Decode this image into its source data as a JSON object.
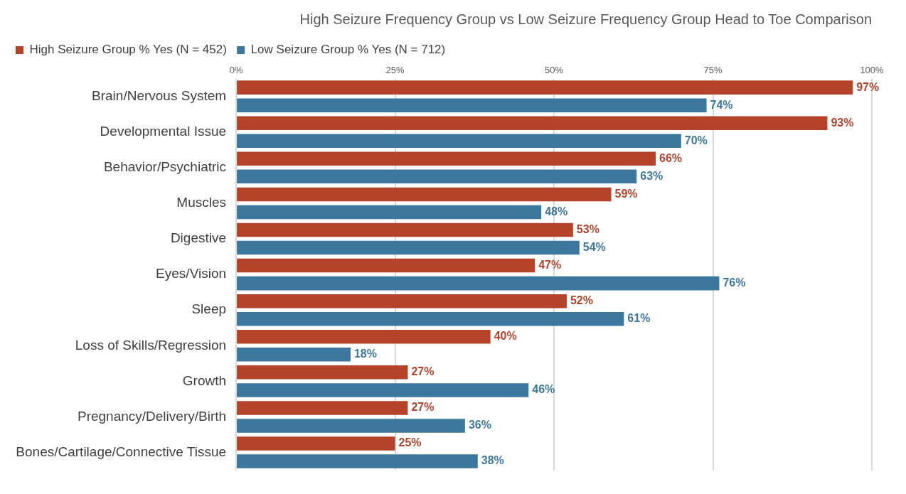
{
  "chart_data": {
    "type": "bar",
    "orientation": "horizontal",
    "title": "High Seizure Frequency Group vs Low Seizure Frequency Group Head to Toe Comparison",
    "categories": [
      "Brain/Nervous System",
      "Developmental Issue",
      "Behavior/Psychiatric",
      "Muscles",
      "Digestive",
      "Eyes/Vision",
      "Sleep",
      "Loss of Skills/Regression",
      "Growth",
      "Pregnancy/Delivery/Birth",
      "Bones/Cartilage/Connective Tissue"
    ],
    "series": [
      {
        "name": "High Seizure Group % Yes (N = 452)",
        "color": "#b5432a",
        "values": [
          97,
          93,
          66,
          59,
          53,
          47,
          52,
          40,
          27,
          27,
          25
        ],
        "value_labels": [
          "97%",
          "93%",
          "66%",
          "59%",
          "53%",
          "47%",
          "52%",
          "40%",
          "27%",
          "27%",
          "25%"
        ]
      },
      {
        "name": "Low Seizure Group % Yes (N = 712)",
        "color": "#3c789e",
        "values": [
          74,
          70,
          63,
          48,
          54,
          76,
          61,
          18,
          46,
          36,
          38
        ],
        "value_labels": [
          "74%",
          "70%",
          "63%",
          "48%",
          "54%",
          "76%",
          "61%",
          "18%",
          "46%",
          "36%",
          "38%"
        ]
      }
    ],
    "xlim": [
      0,
      100
    ],
    "xticks": [
      {
        "value": 0,
        "label": "0%"
      },
      {
        "value": 25,
        "label": "25%"
      },
      {
        "value": 50,
        "label": "50%"
      },
      {
        "value": 75,
        "label": "75%"
      },
      {
        "value": 100,
        "label": "100%"
      }
    ],
    "grid": "x",
    "legend": "top"
  }
}
